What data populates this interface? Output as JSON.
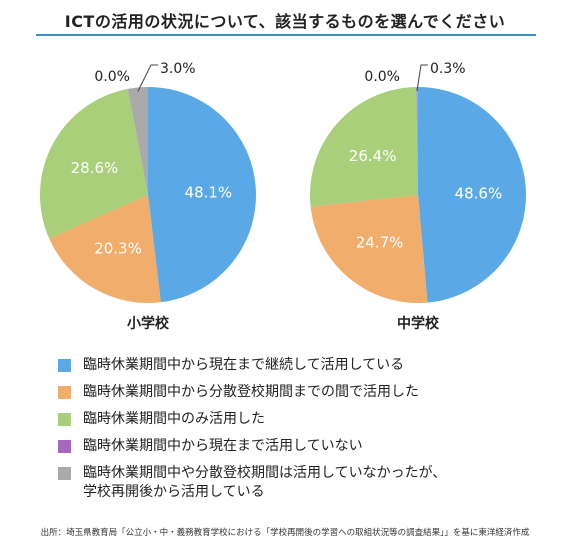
{
  "header": {
    "title": "ICTの活用の状況について、該当するものを選んでください"
  },
  "chart_data": [
    {
      "type": "pie",
      "title": "小学校",
      "categories": [
        "臨時休業期間中から現在まで継続して活用している",
        "臨時休業期間中から分散登校期間までの間で活用した",
        "臨時休業期間中のみ活用した",
        "臨時休業期間中から現在まで活用していない",
        "臨時休業期間中や分散登校期間は活用していなかったが、学校再開後から活用している"
      ],
      "values": [
        48.1,
        20.3,
        28.6,
        0.0,
        3.0
      ],
      "labels": [
        "48.1%",
        "20.3%",
        "28.6%",
        "0.0%",
        "3.0%"
      ],
      "colors": [
        "#5aa9e6",
        "#f0ad6b",
        "#a9cf7a",
        "#a569bd",
        "#aaaaaa"
      ]
    },
    {
      "type": "pie",
      "title": "中学校",
      "categories": [
        "臨時休業期間中から現在まで継続して活用している",
        "臨時休業期間中から分散登校期間までの間で活用した",
        "臨時休業期間中のみ活用した",
        "臨時休業期間中から現在まで活用していない",
        "臨時休業期間中や分散登校期間は活用していなかったが、学校再開後から活用している"
      ],
      "values": [
        48.6,
        24.7,
        26.4,
        0.0,
        0.3
      ],
      "labels": [
        "48.6%",
        "24.7%",
        "26.4%",
        "0.0%",
        "0.3%"
      ],
      "colors": [
        "#5aa9e6",
        "#f0ad6b",
        "#a9cf7a",
        "#a569bd",
        "#aaaaaa"
      ]
    }
  ],
  "legend": [
    {
      "label": "臨時休業期間中から現在まで継続して活用している",
      "color": "#5aa9e6"
    },
    {
      "label": "臨時休業期間中から分散登校期間までの間で活用した",
      "color": "#f0ad6b"
    },
    {
      "label": "臨時休業期間中のみ活用した",
      "color": "#a9cf7a"
    },
    {
      "label": "臨時休業期間中から現在まで活用していない",
      "color": "#a569bd"
    },
    {
      "label": "臨時休業期間中や分散登校期間は活用していなかったが、\n学校再開後から活用している",
      "color": "#aaaaaa"
    }
  ],
  "source": "出所：埼玉県教育局「公立小・中・義務教育学校における「学校再開後の学習への取組状況等の調査結果」」を基に東洋経済作成"
}
